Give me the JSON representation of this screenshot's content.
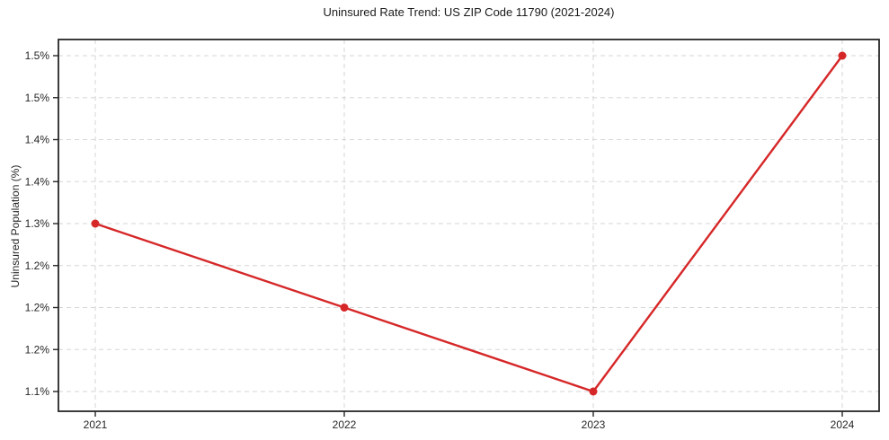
{
  "chart_data": {
    "type": "line",
    "title": "Uninsured Rate Trend: US ZIP Code 11790 (2021-2024)",
    "xlabel": "",
    "ylabel": "Uninsured Population (%)",
    "categories": [
      "2021",
      "2022",
      "2023",
      "2024"
    ],
    "series": [
      {
        "name": "Uninsured rate",
        "values": [
          1.3,
          1.2,
          1.1,
          1.5
        ]
      }
    ],
    "ylim": [
      1.08,
      1.52
    ],
    "yticks": {
      "values": [
        1.5,
        1.45,
        1.4,
        1.35,
        1.3,
        1.25,
        1.2,
        1.15,
        1.1
      ],
      "labels": [
        "1.5%",
        "1.5%",
        "1.4%",
        "1.4%",
        "1.3%",
        "1.2%",
        "1.2%",
        "1.2%",
        "1.1%"
      ]
    },
    "grid": true,
    "grid_style": "dashed",
    "legend": "none",
    "colors": {
      "line": "#d62728",
      "marker": "#d62728",
      "grid": "#d6d6d6",
      "axis": "#262626",
      "text": "#262626",
      "background": "#ffffff"
    }
  }
}
